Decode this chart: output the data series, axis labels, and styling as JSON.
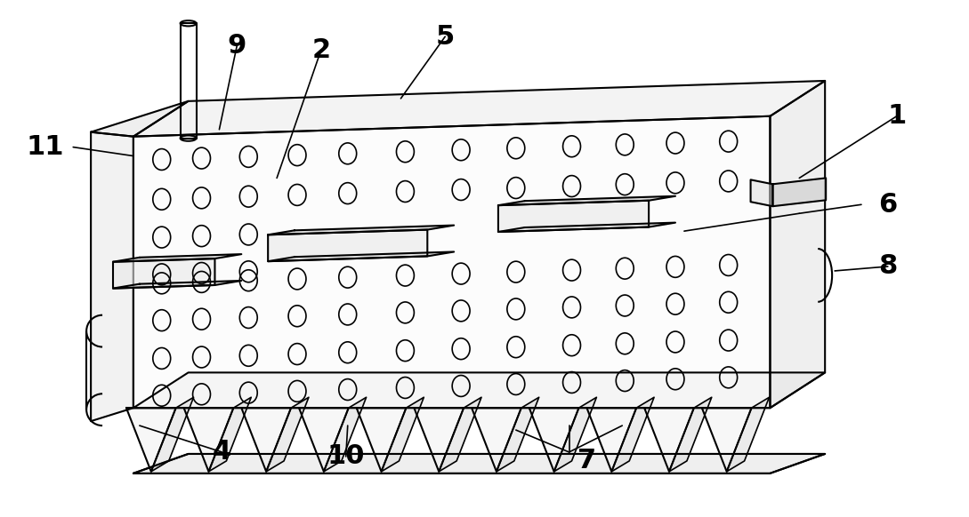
{
  "bg_color": "#ffffff",
  "line_color": "#000000",
  "line_width": 1.5,
  "fig_width": 10.89,
  "fig_height": 5.82,
  "label_fontsize": 22
}
